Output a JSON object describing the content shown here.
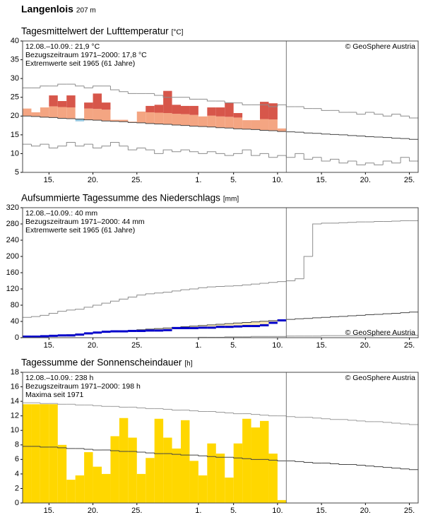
{
  "header": {
    "title": "Langenlois",
    "subtitle": "207 m"
  },
  "chart_data": [
    {
      "type": "bar",
      "title": "Tagesmittelwert der Lufttemperatur",
      "unit": "[°C]",
      "annotations": [
        "12.08.–10.09.: 21,9 °C",
        "Bezugszeitraum 1971–2000: 17,8 °C",
        "Extremwerte seit 1965 (61 Jahre)"
      ],
      "annotation_colors": [
        "#000000",
        "#888888",
        "#c4c4c4"
      ],
      "copyright": "© GeoSphere Austria",
      "copyright_position": "top",
      "categories": [
        null,
        null,
        null,
        "15.",
        null,
        null,
        null,
        null,
        "20.",
        null,
        null,
        null,
        null,
        "25.",
        null,
        null,
        null,
        null,
        null,
        null,
        "1.",
        null,
        null,
        null,
        "5.",
        null,
        null,
        null,
        null,
        "10.",
        null,
        null,
        null,
        null,
        "15.",
        null,
        null,
        null,
        null,
        "20.",
        null,
        null,
        null,
        null,
        "25."
      ],
      "ylim": [
        5,
        40
      ],
      "yticks": [
        5,
        10,
        15,
        20,
        25,
        30,
        35,
        40
      ],
      "series": [
        {
          "style": "anomaly",
          "color": "#d7564a",
          "color_light": "#f4a582",
          "color_below": "#92c5de",
          "values": [
            22,
            21,
            22.3,
            25.5,
            24,
            25.5,
            18.6,
            23.6,
            26,
            23.6,
            19,
            19,
            18.5,
            21.2,
            22.7,
            23,
            26.7,
            23,
            22.7,
            22.7,
            19.9,
            22.3,
            22.3,
            23.6,
            20.8,
            18.9,
            18.9,
            23.8,
            23.4,
            16.7,
            null,
            null,
            null,
            null,
            null,
            null,
            null,
            null,
            null,
            null,
            null,
            null,
            null,
            null,
            null
          ]
        },
        {
          "style": "step",
          "color": "#444444",
          "values": [
            20,
            19.9,
            19.7,
            19.6,
            19.4,
            19.3,
            19.2,
            19,
            18.9,
            18.7,
            18.6,
            18.5,
            18.3,
            18.2,
            18,
            17.9,
            17.8,
            17.6,
            17.5,
            17.3,
            17.2,
            17.1,
            16.9,
            16.8,
            16.6,
            16.5,
            16.4,
            16.2,
            16.1,
            15.9,
            15.8,
            15.7,
            15.5,
            15.4,
            15.2,
            15.1,
            15,
            14.8,
            14.7,
            14.5,
            14.4,
            14.3,
            14.1,
            14,
            13.8
          ]
        },
        {
          "style": "step",
          "color": "#8c8c8c",
          "values": [
            27.5,
            27.5,
            28,
            28,
            28.5,
            28.5,
            28,
            27.5,
            28,
            28,
            27,
            26.5,
            26,
            26,
            26,
            25.5,
            25,
            25,
            25,
            24.5,
            24.5,
            24,
            24,
            23.5,
            23.5,
            23,
            23,
            23,
            22.5,
            23,
            22.5,
            22.5,
            22,
            22,
            21.5,
            21.5,
            21,
            21,
            20.5,
            21,
            20.5,
            20,
            20.5,
            20,
            19.5
          ]
        },
        {
          "style": "step",
          "color": "#8c8c8c",
          "values": [
            12.5,
            12,
            12.5,
            11.5,
            12,
            13,
            12,
            12.5,
            11.5,
            12,
            13,
            12,
            11,
            11.5,
            11,
            10,
            11,
            10.5,
            11,
            10.5,
            10,
            10.5,
            10,
            9.5,
            10,
            11,
            9.5,
            10,
            9,
            9.5,
            9,
            10,
            8.5,
            9,
            8,
            8.5,
            7.5,
            8,
            7,
            7.5,
            7,
            8,
            7.5,
            9,
            8
          ]
        }
      ]
    },
    {
      "type": "line",
      "title": "Aufsummierte Tagessumme des Niederschlags",
      "unit": "[mm]",
      "annotations": [
        "12.08.–10.09.: 40 mm",
        "Bezugszeitraum 1971–2000: 44 mm",
        "Extremwerte seit 1965 (61 Jahre)"
      ],
      "annotation_colors": [
        "#000000",
        "#888888",
        "#c4c4c4"
      ],
      "copyright": "© GeoSphere Austria",
      "copyright_position": "bottom",
      "categories": [
        null,
        null,
        null,
        "15.",
        null,
        null,
        null,
        null,
        "20.",
        null,
        null,
        null,
        null,
        "25.",
        null,
        null,
        null,
        null,
        null,
        null,
        "1.",
        null,
        null,
        null,
        "5.",
        null,
        null,
        null,
        null,
        "10.",
        null,
        null,
        null,
        null,
        "15.",
        null,
        null,
        null,
        null,
        "20.",
        null,
        null,
        null,
        null,
        "25."
      ],
      "ylim": [
        0,
        320
      ],
      "yticks": [
        0,
        40,
        80,
        120,
        160,
        200,
        240,
        280,
        320
      ],
      "series": [
        {
          "style": "deficit",
          "color": "#0000cc",
          "fill": "#f9e9b5",
          "values": [
            0,
            0,
            1,
            2,
            3,
            3,
            5,
            8,
            10,
            12,
            13,
            13,
            14,
            14,
            15,
            15,
            16,
            21,
            21,
            21,
            22,
            22,
            24,
            24,
            25,
            26,
            26,
            28,
            34,
            40,
            null,
            null,
            null,
            null,
            null,
            null,
            null,
            null,
            null,
            null,
            null,
            null,
            null,
            null,
            null
          ]
        },
        {
          "style": "step",
          "color": "#444444",
          "values": [
            0,
            1.5,
            3,
            4.5,
            6,
            7.5,
            9,
            10.5,
            12,
            13.5,
            15,
            16.5,
            18,
            19.5,
            21,
            22.5,
            24,
            25.5,
            27,
            28.5,
            30,
            31.5,
            33,
            34.5,
            36,
            37.5,
            39,
            40.5,
            42,
            43.5,
            45,
            46.5,
            47.5,
            49,
            50,
            51.5,
            52.5,
            54,
            55,
            56.5,
            57.5,
            59,
            60,
            61.5,
            63
          ]
        },
        {
          "style": "step",
          "color": "#8c8c8c",
          "values": [
            50,
            52,
            55,
            60,
            65,
            68,
            70,
            75,
            80,
            85,
            90,
            95,
            100,
            105,
            108,
            110,
            112,
            115,
            118,
            120,
            123,
            125,
            126,
            127,
            128,
            130,
            132,
            134,
            136,
            138,
            140,
            145,
            200,
            280,
            282,
            282,
            283,
            284,
            285,
            285,
            286,
            286,
            287,
            288,
            288
          ]
        },
        {
          "style": "step",
          "color": "#8c8c8c",
          "values": [
            0,
            0,
            0,
            0,
            0,
            0,
            0,
            0,
            0,
            0,
            0,
            0,
            0,
            0,
            0,
            0,
            0,
            0,
            0,
            0,
            1,
            1,
            1,
            2,
            2,
            2,
            3,
            3,
            3,
            3,
            4,
            4,
            4,
            4,
            5,
            5,
            5,
            5,
            5,
            5,
            6,
            6,
            6,
            6,
            6
          ]
        }
      ]
    },
    {
      "type": "bar",
      "title": "Tagessumme der Sonnenscheindauer",
      "unit": "[h]",
      "annotations": [
        "12.08.–10.09.: 238 h",
        "Bezugszeitraum 1971–2000: 198 h",
        "Maxima seit 1971"
      ],
      "annotation_colors": [
        "#000000",
        "#888888",
        "#c4c4c4"
      ],
      "copyright": "© GeoSphere Austria",
      "copyright_position": "top",
      "categories": [
        null,
        null,
        null,
        "15.",
        null,
        null,
        null,
        null,
        "20.",
        null,
        null,
        null,
        null,
        "25.",
        null,
        null,
        null,
        null,
        null,
        null,
        "1.",
        null,
        null,
        null,
        "5.",
        null,
        null,
        null,
        null,
        "10.",
        null,
        null,
        null,
        null,
        "15.",
        null,
        null,
        null,
        null,
        "20.",
        null,
        null,
        null,
        null,
        "25."
      ],
      "ylim": [
        0,
        18
      ],
      "yticks": [
        0,
        2,
        4,
        6,
        8,
        10,
        12,
        14,
        16,
        18
      ],
      "series": [
        {
          "style": "bar",
          "color": "#ffd700",
          "values": [
            13.6,
            13.6,
            13.6,
            13.6,
            8,
            3.2,
            3.8,
            7,
            5,
            4,
            9.2,
            11.7,
            9,
            4,
            6.2,
            11.6,
            9,
            7.5,
            11.4,
            5.8,
            3.8,
            8.2,
            6.8,
            3.5,
            8.2,
            11.6,
            10.4,
            11.3,
            6.8,
            0.4,
            null,
            null,
            null,
            null,
            null,
            null,
            null,
            null,
            null,
            null,
            null,
            null,
            null,
            null,
            null
          ]
        },
        {
          "style": "step",
          "color": "#9a9a9a",
          "values": [
            13.8,
            13.8,
            13.7,
            13.7,
            13.6,
            13.6,
            13.5,
            13.5,
            13.4,
            13.3,
            13.3,
            13.2,
            13.2,
            13.1,
            13,
            13,
            12.9,
            12.8,
            12.8,
            12.7,
            12.6,
            12.6,
            12.5,
            12.4,
            12.3,
            12.3,
            12.2,
            12.1,
            12,
            12,
            11.9,
            11.8,
            11.8,
            11.7,
            11.6,
            11.5,
            11.5,
            11.4,
            11.3,
            11.2,
            11.2,
            11.1,
            11,
            10.9,
            10.8
          ]
        },
        {
          "style": "step",
          "color": "#444444",
          "values": [
            7.8,
            7.8,
            7.7,
            7.7,
            7.6,
            7.5,
            7.5,
            7.4,
            7.3,
            7.3,
            7.2,
            7.1,
            7.1,
            7,
            6.9,
            6.8,
            6.8,
            6.7,
            6.6,
            6.6,
            6.5,
            6.4,
            6.3,
            6.3,
            6.2,
            6.1,
            6,
            6,
            5.9,
            5.8,
            5.8,
            5.7,
            5.6,
            5.5,
            5.5,
            5.4,
            5.3,
            5.3,
            5.2,
            5.1,
            5,
            4.9,
            4.8,
            4.7,
            4.6
          ]
        }
      ]
    }
  ]
}
